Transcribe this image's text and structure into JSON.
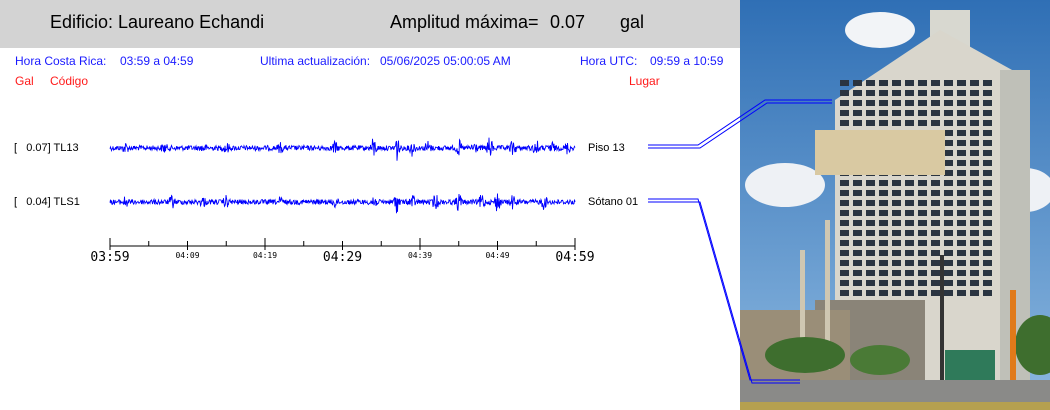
{
  "header": {
    "building_label": "Edificio: Laureano Echandi",
    "amplitude_label": "Amplitud máxima=",
    "amplitude_value": "0.07",
    "amplitude_unit": "gal"
  },
  "info": {
    "local_label": "Hora Costa Rica:",
    "local_range": "03:59 a 04:59",
    "update_label": "Ultima actualización:",
    "update_value": "05/06/2025 05:00:05 AM",
    "utc_label": "Hora UTC:",
    "utc_range": "09:59 a 10:59"
  },
  "legend": {
    "gal": "Gal",
    "code": "Código",
    "place": "Lugar"
  },
  "colors": {
    "trace": "#0000ff",
    "info_text": "#1a1aff",
    "legend_text": "#ff1a1a",
    "header_bg": "#d3d3d3"
  },
  "chart_data": {
    "type": "line",
    "title": "",
    "xlabel": "",
    "ylabel": "",
    "x_ticks": [
      "03:59",
      "04:09",
      "04:19",
      "04:29",
      "04:39",
      "04:49",
      "04:59"
    ],
    "xlim": [
      "03:59",
      "04:59"
    ],
    "series": [
      {
        "name": "TL13",
        "amplitude": "0.07",
        "label": "[   0.07] TL13",
        "place": "Piso 13",
        "bursts": [
          [
            "04:01",
            1.0
          ],
          [
            "04:06",
            1.0
          ],
          [
            "04:11",
            0.8
          ],
          [
            "04:14",
            1.2
          ],
          [
            "04:21",
            1.0
          ],
          [
            "04:28",
            1.4
          ],
          [
            "04:33",
            2.4
          ],
          [
            "04:36",
            3.2
          ],
          [
            "04:38",
            1.8
          ],
          [
            "04:40",
            1.6
          ],
          [
            "04:44",
            1.8
          ],
          [
            "04:46",
            1.4
          ],
          [
            "04:48",
            2.6
          ],
          [
            "04:51",
            1.8
          ],
          [
            "04:54",
            1.8
          ],
          [
            "04:56",
            1.4
          ],
          [
            "04:58",
            1.2
          ]
        ]
      },
      {
        "name": "TLS1",
        "amplitude": "0.04",
        "label": "[   0.04] TLS1",
        "place": "Sótano 01",
        "bursts": [
          [
            "04:01",
            1.2
          ],
          [
            "04:07",
            1.4
          ],
          [
            "04:11",
            1.0
          ],
          [
            "04:14",
            1.2
          ],
          [
            "04:21",
            1.0
          ],
          [
            "04:28",
            1.2
          ],
          [
            "04:33",
            2.0
          ],
          [
            "04:36",
            2.6
          ],
          [
            "04:38",
            1.6
          ],
          [
            "04:41",
            1.8
          ],
          [
            "04:44",
            2.2
          ],
          [
            "04:47",
            2.0
          ],
          [
            "04:49",
            2.4
          ],
          [
            "04:51",
            1.6
          ],
          [
            "04:55",
            1.6
          ]
        ]
      }
    ]
  }
}
